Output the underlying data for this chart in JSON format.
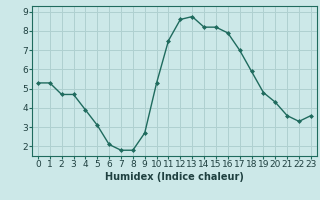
{
  "x": [
    0,
    1,
    2,
    3,
    4,
    5,
    6,
    7,
    8,
    9,
    10,
    11,
    12,
    13,
    14,
    15,
    16,
    17,
    18,
    19,
    20,
    21,
    22,
    23
  ],
  "y": [
    5.3,
    5.3,
    4.7,
    4.7,
    3.9,
    3.1,
    2.1,
    1.8,
    1.8,
    2.7,
    5.3,
    7.5,
    8.6,
    8.75,
    8.2,
    8.2,
    7.9,
    7.0,
    5.9,
    4.8,
    4.3,
    3.6,
    3.3,
    3.6
  ],
  "xlabel": "Humidex (Indice chaleur)",
  "ylim": [
    1.5,
    9.3
  ],
  "xlim": [
    -0.5,
    23.5
  ],
  "yticks": [
    2,
    3,
    4,
    5,
    6,
    7,
    8,
    9
  ],
  "line_color": "#1f6b5e",
  "marker_color": "#1f6b5e",
  "bg_color": "#cce8e8",
  "grid_color": "#afd0d0",
  "spine_color": "#1f6b5e",
  "tick_label_color": "#1f4040",
  "xlabel_color": "#1f4040",
  "xlabel_fontsize": 7,
  "tick_fontsize": 6.5
}
